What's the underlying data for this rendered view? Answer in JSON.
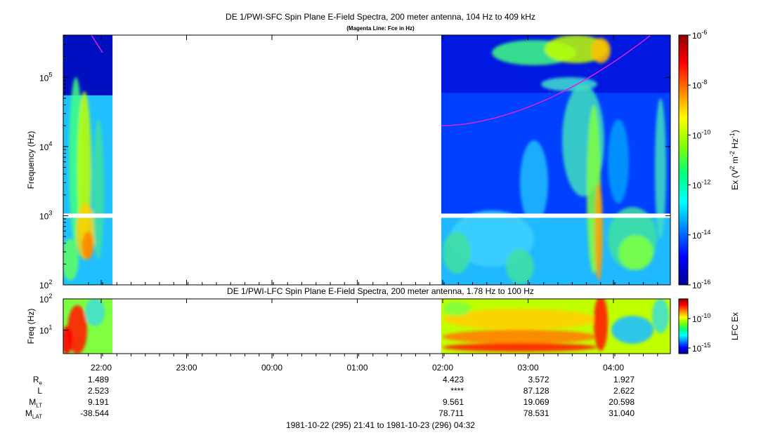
{
  "chart_data": [
    {
      "type": "heatmap",
      "title": "DE 1/PWI-SFC  Spin Plane E-Field Spectra, 200 meter antenna, 104 Hz to 409 kHz",
      "subtitle": "(Magenta Line: Fce in Hz)",
      "ylabel": "Frequency (Hz)",
      "yscale": "log",
      "ylim": [
        100,
        409000
      ],
      "yticks": [
        {
          "value": 100,
          "base": "10",
          "exp": "2"
        },
        {
          "value": 1000,
          "base": "10",
          "exp": "3"
        },
        {
          "value": 10000,
          "base": "10",
          "exp": "4"
        },
        {
          "value": 100000,
          "base": "10",
          "exp": "5"
        }
      ],
      "colorbar": {
        "label_parts": [
          "Ex (V",
          "2",
          " m",
          "-2",
          " Hz",
          "-1",
          ")"
        ],
        "scale": "log",
        "range": [
          1e-16,
          1e-06
        ],
        "ticks": [
          {
            "value": 1e-06,
            "base": "10",
            "exp": "-6"
          },
          {
            "value": 1e-08,
            "base": "10",
            "exp": "-8"
          },
          {
            "value": 1e-10,
            "base": "10",
            "exp": "-10"
          },
          {
            "value": 1e-12,
            "base": "10",
            "exp": "-12"
          },
          {
            "value": 1e-14,
            "base": "10",
            "exp": "-14"
          },
          {
            "value": 1e-16,
            "base": "10",
            "exp": "-16"
          }
        ]
      },
      "overlay": {
        "name": "Fce",
        "color": "#e020e0"
      },
      "data_gap": [
        "22:08",
        "01:59"
      ]
    },
    {
      "type": "heatmap",
      "title": "DE 1/PWI-LFC  Spin Plane E-Field Spectra, 200 meter antenna, 1.78 Hz to 100 Hz",
      "ylabel": "Freq (Hz)",
      "yscale": "log",
      "ylim": [
        1.78,
        100
      ],
      "yticks": [
        {
          "value": 10,
          "base": "10",
          "exp": "1"
        },
        {
          "value": 100,
          "base": "10",
          "exp": "2"
        }
      ],
      "colorbar": {
        "label": "LFC Ex",
        "scale": "log",
        "ticks": [
          {
            "value": 1e-10,
            "base": "10",
            "exp": "-10"
          },
          {
            "value": 1e-15,
            "base": "10",
            "exp": "-15"
          }
        ]
      },
      "data_gap": [
        "22:08",
        "01:59"
      ]
    }
  ],
  "time_axis": {
    "ticks": [
      "22:00",
      "23:00",
      "00:00",
      "01:00",
      "02:00",
      "03:00",
      "04:00"
    ],
    "range_label": "1981-10-22 (295) 21:41 to 1981-10-23 (296) 04:32"
  },
  "ephemeris": {
    "labels": [
      {
        "base": "R",
        "sub": "e"
      },
      {
        "base": "L",
        "sub": ""
      },
      {
        "base": "M",
        "sub": "LT"
      },
      {
        "base": "M",
        "sub": "LAT"
      }
    ],
    "columns": [
      {
        "time": "21:55",
        "values": [
          "1.489",
          "2.523",
          "9.191",
          "-38.544"
        ]
      },
      {
        "time": "02:00",
        "values": [
          "4.423",
          "****",
          "9.561",
          "78.711"
        ]
      },
      {
        "time": "03:00",
        "values": [
          "3.572",
          "87.128",
          "19.069",
          "78.531"
        ]
      },
      {
        "time": "04:00",
        "values": [
          "1.927",
          "2.622",
          "20.598",
          "31.040"
        ]
      }
    ]
  },
  "colors": {
    "background": "#ffffff",
    "colormap": [
      "#000090",
      "#0000ff",
      "#0080ff",
      "#00ffff",
      "#00ff80",
      "#80ff00",
      "#ffff00",
      "#ff8000",
      "#ff0000",
      "#900000"
    ]
  }
}
